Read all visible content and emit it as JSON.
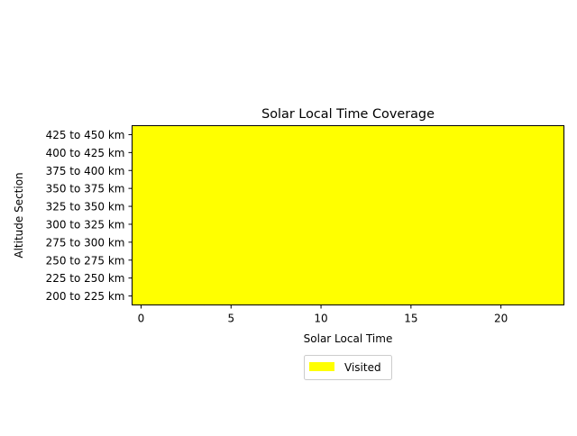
{
  "chart_data": {
    "type": "heatmap",
    "title": "Solar Local Time Coverage",
    "xlabel": "Solar Local Time",
    "ylabel": "Altitude Section",
    "xlim": [
      -0.5,
      23.5
    ],
    "x_ticks": [
      0,
      5,
      10,
      15,
      20
    ],
    "x_tick_labels": [
      "0",
      "5",
      "10",
      "15",
      "20"
    ],
    "categories": [
      "200 to 225 km",
      "225 to 250 km",
      "250 to 275 km",
      "275 to 300 km",
      "300 to 325 km",
      "325 to 350 km",
      "350 to 375 km",
      "375 to 400 km",
      "400 to 425 km",
      "425 to 450 km"
    ],
    "hours": [
      0,
      1,
      2,
      3,
      4,
      5,
      6,
      7,
      8,
      9,
      10,
      11,
      12,
      13,
      14,
      15,
      16,
      17,
      18,
      19,
      20,
      21,
      22,
      23
    ],
    "coverage": "all-visited",
    "legend": {
      "placement": "bottom-center",
      "entries": [
        {
          "label": "Visited",
          "color": "#ffff00"
        }
      ]
    },
    "colors": {
      "visited": "#ffff00",
      "axes": "#000000"
    },
    "grid": false
  }
}
